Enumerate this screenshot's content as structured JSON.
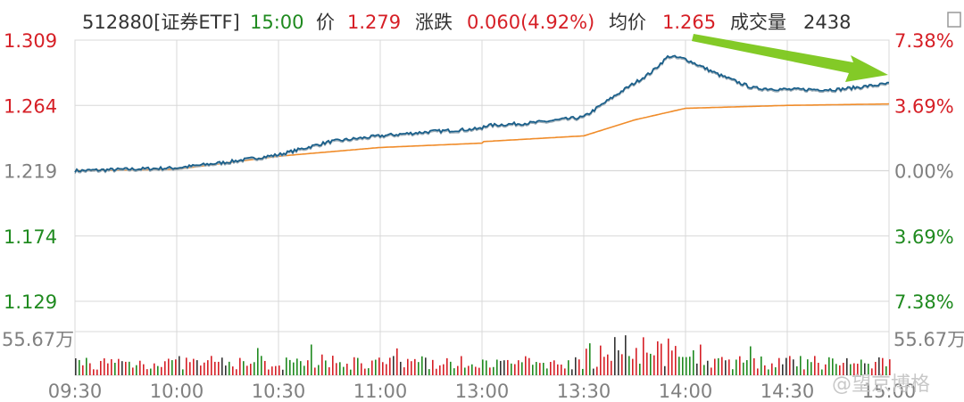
{
  "header": {
    "code": "512880[证券ETF]",
    "time": "15:00",
    "price_label": "价",
    "price": "1.279",
    "change_label": "涨跌",
    "change": "0.060(4.92%)",
    "avg_label": "均价",
    "avg": "1.265",
    "volume_label": "成交量",
    "volume": "2438"
  },
  "watermark": "@望京博格",
  "colors": {
    "up": "#d61f26",
    "down": "#1f8a1f",
    "neutral": "#808080",
    "price_line": "#1a5f8a",
    "avg_line": "#f08c2a",
    "arrow": "#7cc71b",
    "grid": "#d8d8d8"
  },
  "chart_data": {
    "type": "line",
    "title": "",
    "y_left_ticks": [
      "1.309",
      "1.264",
      "1.219",
      "1.174",
      "1.129"
    ],
    "y_right_ticks": [
      "7.38%",
      "3.69%",
      "0.00%",
      "3.69%",
      "7.38%"
    ],
    "ylim": [
      1.129,
      1.309
    ],
    "x_ticks": [
      "09:30",
      "10:00",
      "10:30",
      "11:00",
      "13:00",
      "13:30",
      "14:00",
      "14:30",
      "15:00"
    ],
    "volume_scale_label": "55.67万",
    "series": [
      {
        "key": "price",
        "x": [
          "09:30",
          "09:45",
          "10:00",
          "10:15",
          "10:30",
          "10:45",
          "11:00",
          "11:15",
          "11:30",
          "13:00",
          "13:15",
          "13:30",
          "13:40",
          "13:50",
          "13:55",
          "14:00",
          "14:10",
          "14:20",
          "14:30",
          "14:45",
          "15:00"
        ],
        "values": [
          1.219,
          1.22,
          1.221,
          1.225,
          1.23,
          1.239,
          1.243,
          1.246,
          1.248,
          1.25,
          1.252,
          1.256,
          1.272,
          1.287,
          1.298,
          1.296,
          1.285,
          1.276,
          1.275,
          1.275,
          1.279
        ]
      },
      {
        "key": "avg",
        "x": [
          "09:30",
          "10:00",
          "10:30",
          "11:00",
          "11:30",
          "13:00",
          "13:30",
          "13:45",
          "14:00",
          "14:30",
          "15:00"
        ],
        "values": [
          1.219,
          1.22,
          1.229,
          1.235,
          1.238,
          1.239,
          1.243,
          1.254,
          1.262,
          1.264,
          1.265
        ]
      }
    ]
  }
}
